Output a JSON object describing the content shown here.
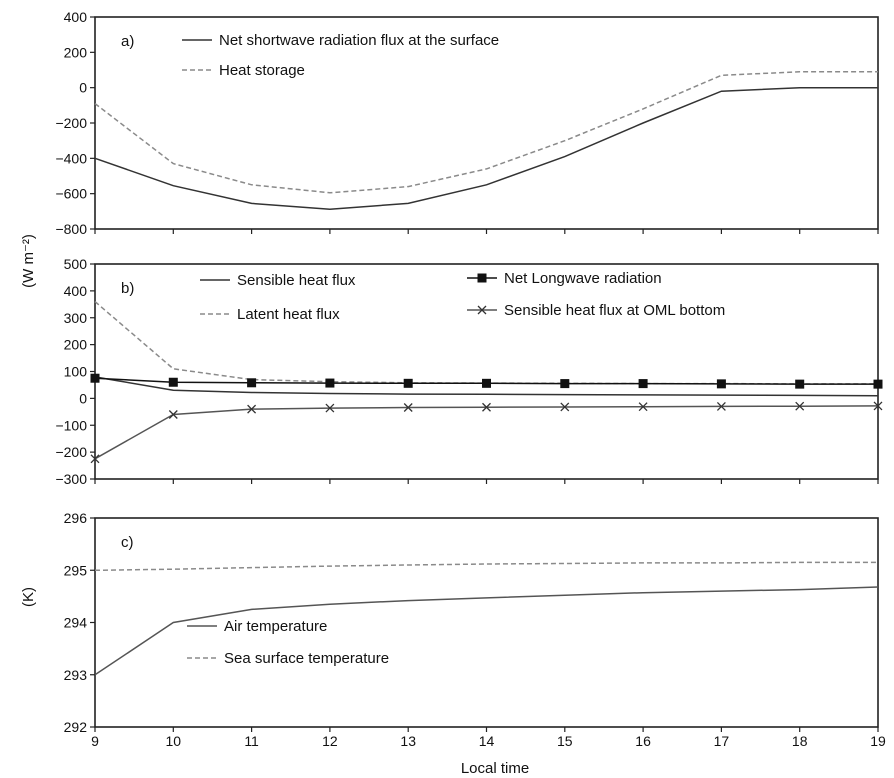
{
  "figure": {
    "xlabel": "Local time",
    "ylabel_flux": "(W m⁻²)",
    "ylabel_temp": "(K)"
  },
  "chart_data": [
    {
      "panel": "a)",
      "type": "line",
      "x": [
        9,
        10,
        11,
        12,
        13,
        14,
        15,
        16,
        17,
        18,
        19
      ],
      "xlim": [
        9,
        19
      ],
      "ylim": [
        -800,
        400
      ],
      "yticks": [
        400,
        200,
        0,
        -200,
        -400,
        -600,
        -800
      ],
      "legend": "top-left",
      "series": [
        {
          "name": "Net shortwave radiation flux at the surface",
          "style": "solid",
          "color": "#333333",
          "marker": "none",
          "values": [
            -400,
            -555,
            -655,
            -688,
            -655,
            -550,
            -390,
            -200,
            -20,
            0,
            0
          ]
        },
        {
          "name": "Heat storage",
          "style": "dashed",
          "color": "#8a8a8a",
          "marker": "none",
          "values": [
            -90,
            -430,
            -550,
            -595,
            -560,
            -460,
            -300,
            -120,
            70,
            90,
            90
          ]
        }
      ]
    },
    {
      "panel": "b)",
      "type": "line",
      "x": [
        9,
        10,
        11,
        12,
        13,
        14,
        15,
        16,
        17,
        18,
        19
      ],
      "xlim": [
        9,
        19
      ],
      "ylim": [
        -300,
        500
      ],
      "yticks": [
        500,
        400,
        300,
        200,
        100,
        0,
        -100,
        -200,
        -300
      ],
      "legend": "top",
      "series": [
        {
          "name": "Sensible heat flux",
          "style": "solid",
          "color": "#333333",
          "marker": "none",
          "values": [
            80,
            30,
            22,
            18,
            16,
            15,
            14,
            13,
            12,
            11,
            10
          ]
        },
        {
          "name": "Latent heat flux",
          "style": "dashed",
          "color": "#8a8a8a",
          "marker": "none",
          "values": [
            360,
            110,
            70,
            62,
            58,
            57,
            56,
            55,
            55,
            54,
            54
          ]
        },
        {
          "name": "Net Longwave radiation",
          "style": "solid",
          "color": "#111111",
          "marker": "square",
          "values": [
            75,
            60,
            58,
            57,
            56,
            56,
            55,
            55,
            54,
            53,
            53
          ]
        },
        {
          "name": "Sensible heat flux at OML bottom",
          "style": "solid",
          "color": "#555555",
          "marker": "x",
          "values": [
            -225,
            -60,
            -40,
            -36,
            -34,
            -33,
            -32,
            -31,
            -30,
            -29,
            -28
          ]
        }
      ]
    },
    {
      "panel": "c)",
      "type": "line",
      "x": [
        9,
        10,
        11,
        12,
        13,
        14,
        15,
        16,
        17,
        18,
        19
      ],
      "xlim": [
        9,
        19
      ],
      "ylim": [
        292,
        296
      ],
      "yticks": [
        296,
        295,
        294,
        293,
        292
      ],
      "legend": "bottom-left",
      "series": [
        {
          "name": "Air temperature",
          "style": "solid",
          "color": "#555555",
          "marker": "none",
          "values": [
            293.0,
            294.0,
            294.25,
            294.35,
            294.42,
            294.47,
            294.52,
            294.57,
            294.6,
            294.63,
            294.68
          ]
        },
        {
          "name": "Sea surface temperature",
          "style": "dashed",
          "color": "#8a8a8a",
          "marker": "none",
          "values": [
            295.0,
            295.02,
            295.05,
            295.08,
            295.1,
            295.12,
            295.13,
            295.14,
            295.14,
            295.15,
            295.15
          ]
        }
      ]
    }
  ]
}
